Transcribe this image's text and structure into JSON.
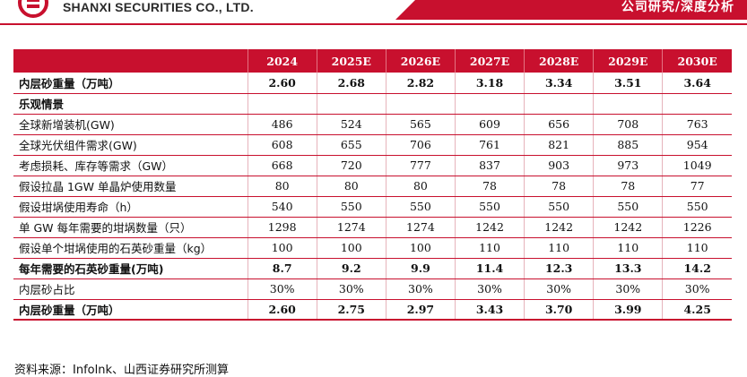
{
  "header": {
    "company_name": "SHANXI SECURITIES CO., LTD.",
    "tag": "公司研究/深度分析"
  },
  "table": {
    "columns": [
      "2024",
      "2025E",
      "2026E",
      "2027E",
      "2028E",
      "2029E",
      "2030E"
    ],
    "rows": [
      {
        "label": "内层砂重量（万吨）",
        "values": [
          "2.60",
          "2.68",
          "2.82",
          "3.18",
          "3.34",
          "3.51",
          "3.64"
        ],
        "bold": true
      },
      {
        "label": "乐观情景",
        "values": [],
        "section": true
      },
      {
        "label": "全球新增装机(GW)",
        "values": [
          "486",
          "524",
          "565",
          "609",
          "656",
          "708",
          "763"
        ]
      },
      {
        "label": "全球光伏组件需求(GW)",
        "values": [
          "608",
          "655",
          "706",
          "761",
          "821",
          "885",
          "954"
        ]
      },
      {
        "label": "考虑损耗、库存等需求（GW）",
        "values": [
          "668",
          "720",
          "777",
          "837",
          "903",
          "973",
          "1049"
        ]
      },
      {
        "label": "假设拉晶 1GW 单晶炉使用数量",
        "values": [
          "80",
          "80",
          "80",
          "78",
          "78",
          "78",
          "77"
        ]
      },
      {
        "label": "假设坩埚使用寿命（h）",
        "values": [
          "540",
          "550",
          "550",
          "550",
          "550",
          "550",
          "550"
        ]
      },
      {
        "label": "单 GW 每年需要的坩埚数量（只）",
        "values": [
          "1298",
          "1274",
          "1274",
          "1242",
          "1242",
          "1242",
          "1226"
        ]
      },
      {
        "label": "假设单个坩埚使用的石英砂重量（kg）",
        "values": [
          "100",
          "100",
          "100",
          "110",
          "110",
          "110",
          "110"
        ]
      },
      {
        "label": "每年需要的石英砂重量(万吨)",
        "values": [
          "8.7",
          "9.2",
          "9.9",
          "11.4",
          "12.3",
          "13.3",
          "14.2"
        ],
        "bold": true
      },
      {
        "label": "内层砂占比",
        "values": [
          "30%",
          "30%",
          "30%",
          "30%",
          "30%",
          "30%",
          "30%"
        ]
      },
      {
        "label": "内层砂重量（万吨）",
        "values": [
          "2.60",
          "2.75",
          "2.97",
          "3.43",
          "3.70",
          "3.99",
          "4.25"
        ],
        "bold": true
      }
    ]
  },
  "source": "资料来源：Infolnk、山西证券研究所测算"
}
